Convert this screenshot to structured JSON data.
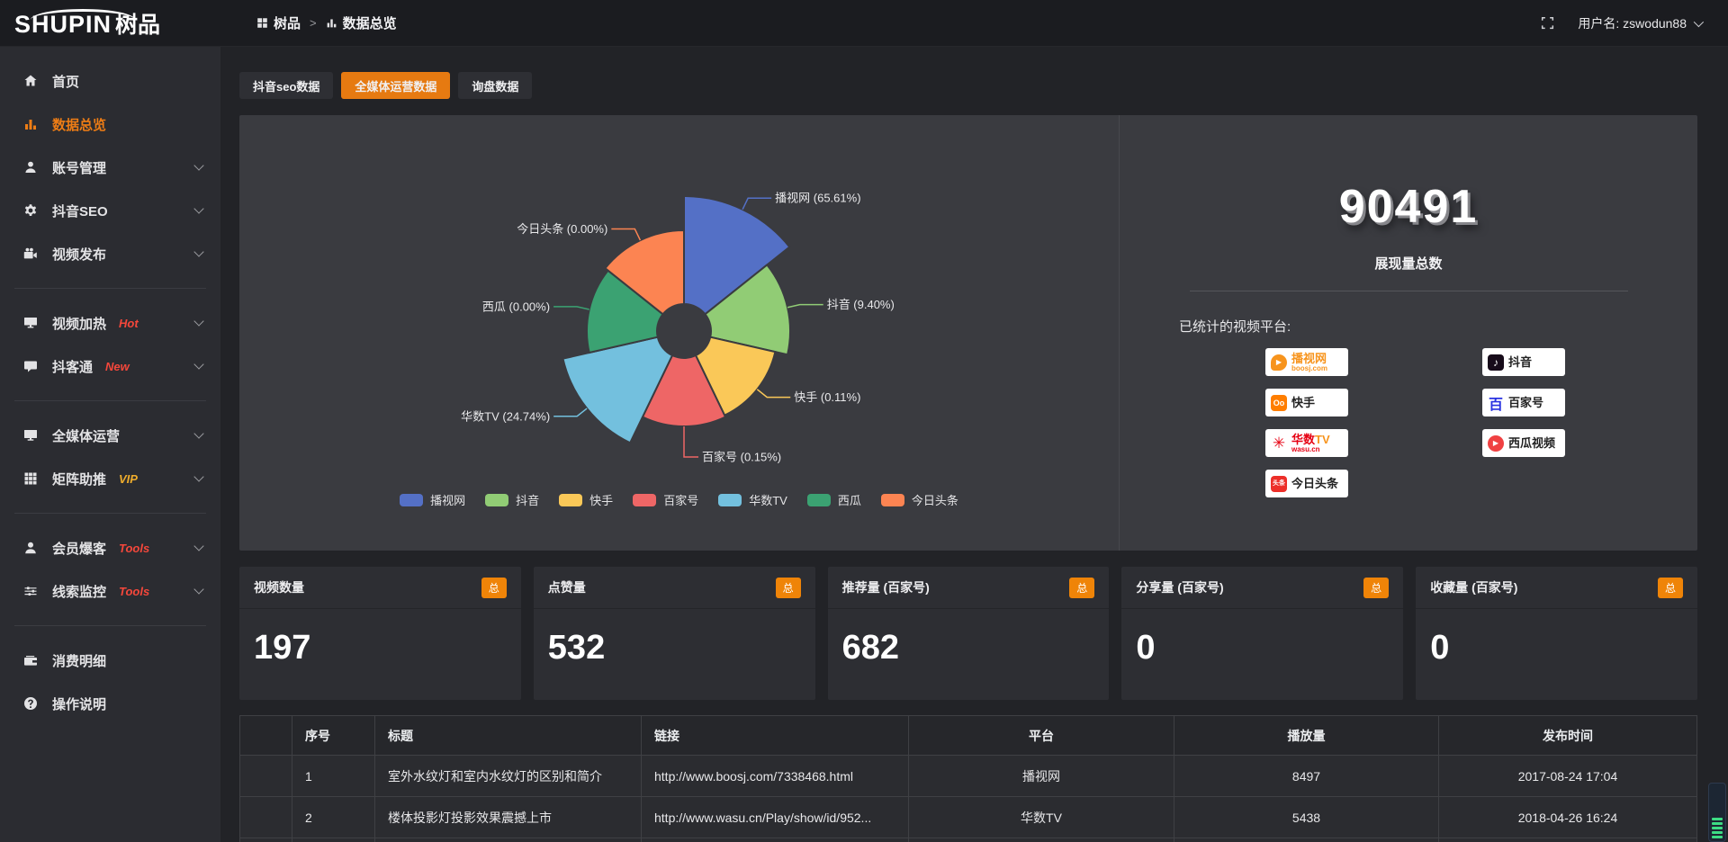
{
  "topbar": {
    "logo_en": "SHUPIN",
    "logo_cn": "树品",
    "breadcrumb": [
      {
        "label": "树品"
      },
      {
        "label": "数据总览"
      }
    ],
    "breadcrumb_sep": ">",
    "username": "用户名: zswodun88"
  },
  "sidebar": {
    "items": [
      {
        "label": "首页",
        "icon": "home-icon",
        "active": false
      },
      {
        "label": "数据总览",
        "icon": "bar-chart-icon",
        "active": true
      },
      {
        "label": "账号管理",
        "icon": "user-icon",
        "expandable": true
      },
      {
        "label": "抖音SEO",
        "icon": "gear-icon",
        "expandable": true
      },
      {
        "label": "视频发布",
        "icon": "video-camera-icon",
        "expandable": true
      },
      {
        "label": "视频加热",
        "icon": "screen-play-icon",
        "tag": "Hot",
        "expandable": true
      },
      {
        "label": "抖客通",
        "icon": "chat-icon",
        "tag": "New",
        "expandable": true
      },
      {
        "label": "全媒体运营",
        "icon": "monitor-icon",
        "expandable": true
      },
      {
        "label": "矩阵助推",
        "icon": "grid-icon",
        "tag": "VIP",
        "expandable": true
      },
      {
        "label": "会员爆客",
        "icon": "member-icon",
        "tag": "Tools",
        "expandable": true
      },
      {
        "label": "线索监控",
        "icon": "sliders-icon",
        "tag": "Tools",
        "expandable": true
      },
      {
        "label": "消费明细",
        "icon": "wallet-icon"
      },
      {
        "label": "操作说明",
        "icon": "help-icon"
      }
    ]
  },
  "tabs": [
    {
      "label": "抖音seo数据",
      "active": false
    },
    {
      "label": "全媒体运营数据",
      "active": true
    },
    {
      "label": "询盘数据",
      "active": false
    }
  ],
  "chart_data": {
    "type": "pie",
    "variant": "nightingale-rose",
    "legend_position": "bottom",
    "series": [
      {
        "name": "播视网",
        "percent": "65.61",
        "color": "#5470c6",
        "radius": 150
      },
      {
        "name": "抖音",
        "percent": "9.40",
        "color": "#91cc75",
        "radius": 118
      },
      {
        "name": "快手",
        "percent": "0.11",
        "color": "#fac858",
        "radius": 104
      },
      {
        "name": "百家号",
        "percent": "0.15",
        "color": "#ee6666",
        "radius": 106
      },
      {
        "name": "华数TV",
        "percent": "24.74",
        "color": "#73c0de",
        "radius": 138
      },
      {
        "name": "西瓜",
        "percent": "0.00",
        "color": "#3ba272",
        "radius": 108
      },
      {
        "name": "今日头条",
        "percent": "0.00",
        "color": "#fc8452",
        "radius": 112
      }
    ]
  },
  "summary": {
    "total_value": "90491",
    "total_label": "展现量总数",
    "platforms_title": "已统计的视频平台:",
    "platforms": [
      {
        "name": "播视网",
        "sub": "boosj.com"
      },
      {
        "name": "快手"
      },
      {
        "name": "华数",
        "tv": "TV",
        "sub": "wasu.cn"
      },
      {
        "name": "今日头条"
      },
      {
        "name": "抖音"
      },
      {
        "name": "百家号"
      },
      {
        "name": "西瓜视频"
      }
    ]
  },
  "stats": {
    "badge": "总",
    "cards": [
      {
        "label": "视频数量",
        "value": "197"
      },
      {
        "label": "点赞量",
        "value": "532"
      },
      {
        "label": "推荐量 (百家号)",
        "value": "682"
      },
      {
        "label": "分享量 (百家号)",
        "value": "0"
      },
      {
        "label": "收藏量 (百家号)",
        "value": "0"
      }
    ]
  },
  "table": {
    "headers": {
      "index": "序号",
      "title": "标题",
      "link": "链接",
      "platform": "平台",
      "views": "播放量",
      "time": "发布时间"
    },
    "rows": [
      {
        "index": "1",
        "title": "室外水纹灯和室内水纹灯的区别和简介",
        "link": "http://www.boosj.com/7338468.html",
        "platform": "播视网",
        "views": "8497",
        "time": "2017-08-24 17:04"
      },
      {
        "index": "2",
        "title": "楼体投影灯投影效果震撼上市",
        "link": "http://www.wasu.cn/Play/show/id/952...",
        "platform": "华数TV",
        "views": "5438",
        "time": "2018-04-26 16:24"
      }
    ]
  },
  "colors": {
    "accent": "#e67a11",
    "link_orange": "#e2873c",
    "tag_red": "#f5473b",
    "tag_gold": "#efad2c",
    "panel_bg": "#3a3b40"
  }
}
